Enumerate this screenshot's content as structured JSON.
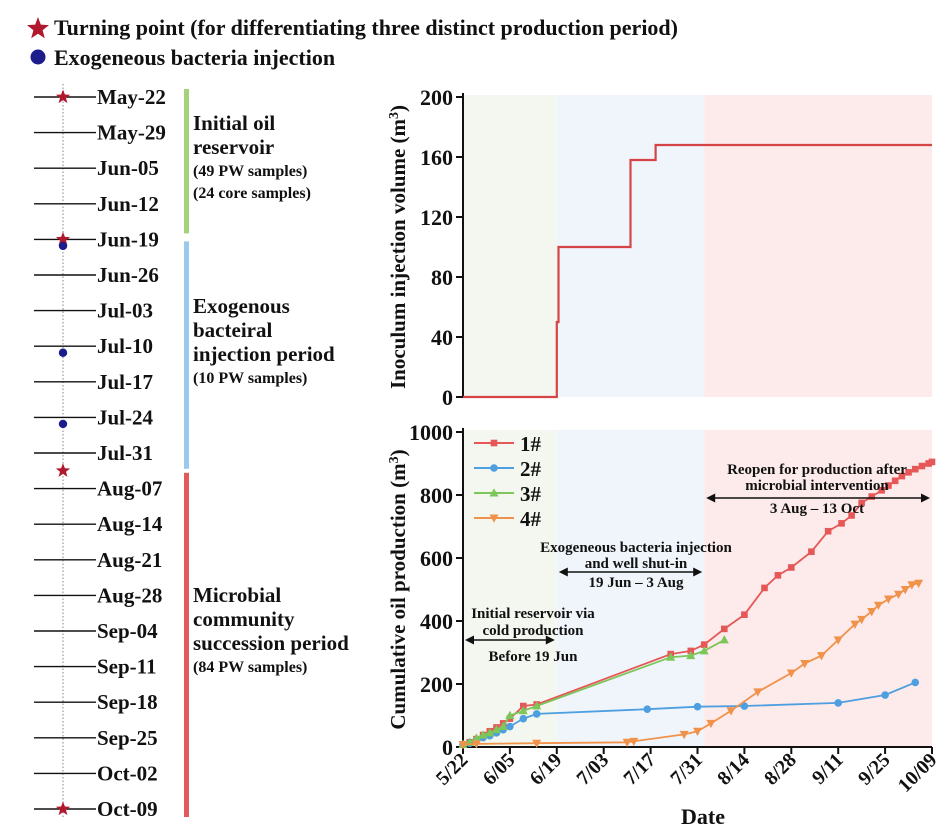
{
  "legend": {
    "turning_point": "Turning point (for differentiating three distinct production period)",
    "injection": "Exogeneous bacteria injection"
  },
  "colors": {
    "star": "#b0182e",
    "dot": "#1c1c8c",
    "green": "#a4d27a",
    "blue": "#9cc8ec",
    "red": "#e35a5a",
    "bg_green": "#f3f7ef",
    "bg_blue": "#eff5fb",
    "bg_red": "#fdeaea"
  },
  "timeline": {
    "dates": [
      "May-22",
      "May-29",
      "Jun-05",
      "Jun-12",
      "Jun-19",
      "Jun-26",
      "Jul-03",
      "Jul-10",
      "Jul-17",
      "Jul-24",
      "Jul-31",
      "Aug-07",
      "Aug-14",
      "Aug-21",
      "Aug-28",
      "Sep-04",
      "Sep-11",
      "Sep-18",
      "Sep-25",
      "Oct-02",
      "Oct-09"
    ],
    "periods": [
      {
        "title_lines": [
          "Initial oil",
          "reservoir"
        ],
        "notes": [
          "(49 PW samples)",
          "(24 core samples)"
        ]
      },
      {
        "title_lines": [
          "Exogenous",
          "bacteiral",
          "injection period"
        ],
        "notes": [
          "(10 PW samples)"
        ]
      },
      {
        "title_lines": [
          "Microbial",
          "community",
          "succession period"
        ],
        "notes": [
          "(84 PW samples)"
        ]
      }
    ]
  },
  "chart_data": [
    {
      "type": "line",
      "ylabel": "Inoculum injection volume (m³)",
      "ylim": [
        0,
        200
      ],
      "yticks": [
        0,
        40,
        80,
        120,
        160,
        200
      ],
      "x_day_range": [
        0,
        140
      ],
      "series": [
        {
          "name": "Inoculum injection volume",
          "color": "#d64545",
          "x": [
            0,
            28,
            28,
            28.5,
            28.5,
            50,
            50,
            57.5,
            57.5,
            140
          ],
          "y": [
            0,
            0,
            50,
            50,
            100,
            100,
            158,
            158,
            168,
            168
          ]
        }
      ]
    },
    {
      "type": "line",
      "xlabel": "Date",
      "ylabel": "Cumulative oil production (m³)",
      "ylim": [
        0,
        1000
      ],
      "yticks": [
        0,
        200,
        400,
        600,
        800,
        1000
      ],
      "x_day_range": [
        0,
        140
      ],
      "x_tick_labels": [
        "5/22",
        "6/05",
        "6/19",
        "7/03",
        "7/17",
        "7/31",
        "8/14",
        "8/28",
        "9/11",
        "9/25",
        "10/09"
      ],
      "x_tick_days": [
        0,
        14,
        28,
        42,
        56,
        70,
        84,
        98,
        112,
        126,
        140
      ],
      "series": [
        {
          "name": "1#",
          "color": "#e65858",
          "marker": "square",
          "x": [
            0,
            2,
            4,
            6,
            8,
            10,
            12,
            14,
            18,
            22,
            62,
            68,
            72,
            78,
            84,
            90,
            94,
            98,
            104,
            109,
            113,
            116,
            119,
            122,
            125,
            127,
            129,
            131,
            133,
            135,
            137,
            139,
            140
          ],
          "y": [
            8,
            15,
            25,
            38,
            50,
            62,
            75,
            90,
            130,
            135,
            295,
            305,
            325,
            375,
            420,
            505,
            545,
            570,
            620,
            685,
            710,
            735,
            775,
            795,
            815,
            830,
            845,
            860,
            872,
            882,
            892,
            900,
            905
          ]
        },
        {
          "name": "2#",
          "color": "#4e9fe0",
          "marker": "circle",
          "x": [
            0,
            2,
            4,
            6,
            8,
            10,
            12,
            14,
            18,
            22,
            55,
            70,
            84,
            112,
            126,
            135
          ],
          "y": [
            8,
            12,
            22,
            30,
            36,
            45,
            55,
            65,
            90,
            105,
            120,
            128,
            130,
            140,
            165,
            205
          ]
        },
        {
          "name": "3#",
          "color": "#7cc65a",
          "marker": "triangle-up",
          "x": [
            0,
            2,
            4,
            6,
            8,
            10,
            12,
            14,
            18,
            22,
            62,
            68,
            72,
            78
          ],
          "y": [
            8,
            15,
            28,
            38,
            45,
            55,
            65,
            100,
            115,
            130,
            285,
            290,
            305,
            340
          ]
        },
        {
          "name": "4#",
          "color": "#f1924a",
          "marker": "triangle-down",
          "x": [
            0,
            4,
            22,
            49,
            51,
            66,
            70,
            74,
            80,
            88,
            98,
            102,
            107,
            112,
            117,
            119,
            122,
            124,
            127,
            130,
            132,
            134,
            136
          ],
          "y": [
            8,
            10,
            12,
            15,
            18,
            40,
            50,
            75,
            115,
            175,
            235,
            265,
            290,
            340,
            390,
            405,
            430,
            450,
            470,
            485,
            500,
            515,
            520
          ]
        }
      ],
      "legend_position": "top-left",
      "annotations": [
        {
          "lines": [
            "Initial reservoir via",
            "cold production"
          ],
          "range": "Before 19 Jun",
          "from_day": 0,
          "to_day": 28
        },
        {
          "lines": [
            "Exogeneous bacteria injection",
            "and well shut-in"
          ],
          "range": "19 Jun – 3 Aug",
          "from_day": 28,
          "to_day": 72
        },
        {
          "lines": [
            "Reopen for production after",
            "microbial intervention"
          ],
          "range": "3 Aug – 13 Oct",
          "from_day": 72,
          "to_day": 140
        }
      ],
      "background_regions": [
        {
          "from_day": 0,
          "to_day": 28,
          "color": "#f3f7ef"
        },
        {
          "from_day": 28,
          "to_day": 72,
          "color": "#eff5fb"
        },
        {
          "from_day": 72,
          "to_day": 140,
          "color": "#fdeaea"
        }
      ]
    }
  ]
}
